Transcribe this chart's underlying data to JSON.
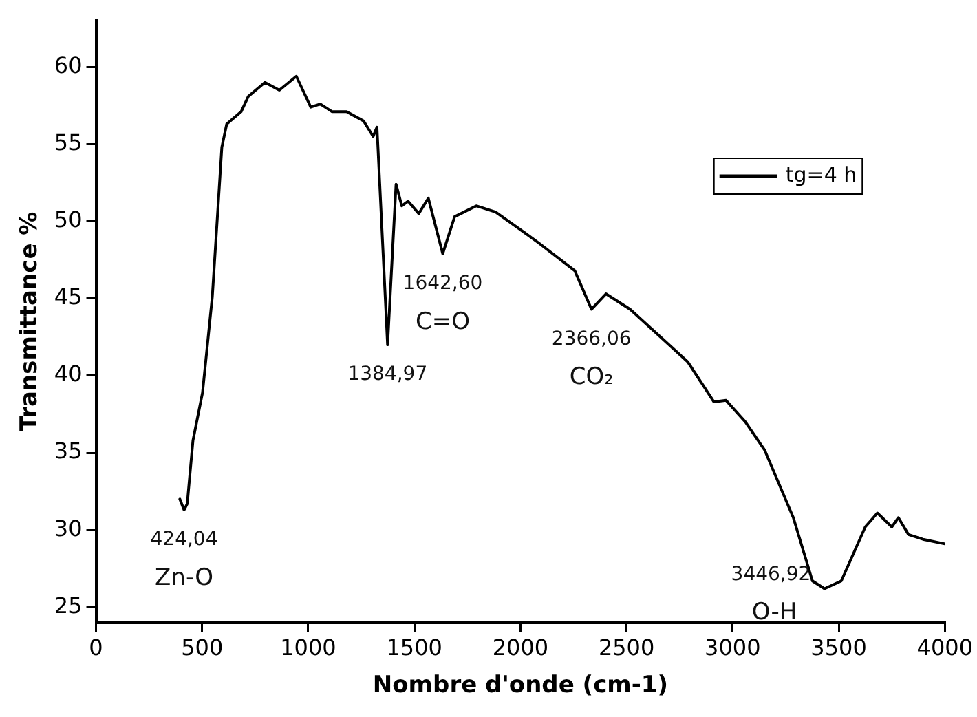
{
  "chart_data": {
    "type": "line",
    "xlabel": "Nombre d'onde (cm-1)",
    "ylabel": "Transmittance %",
    "xlim": [
      0,
      4000
    ],
    "xticks": [
      0,
      500,
      1000,
      1500,
      2000,
      2500,
      3000,
      3500,
      4000
    ],
    "ylim": [
      24,
      63
    ],
    "yticks": [
      25,
      30,
      35,
      40,
      45,
      50,
      55,
      60
    ],
    "grid": false,
    "legend": "top right",
    "marker": "none",
    "line_style": "solid",
    "series": [
      {
        "name": "tg=4 h",
        "color": "#000000",
        "x": [
          395,
          415,
          430,
          457,
          502,
          548,
          593,
          616,
          684,
          718,
          796,
          864,
          944,
          1012,
          1057,
          1113,
          1181,
          1261,
          1306,
          1324,
          1374,
          1414,
          1441,
          1471,
          1521,
          1566,
          1634,
          1690,
          1792,
          1883,
          1996,
          2086,
          2256,
          2335,
          2403,
          2517,
          2788,
          2912,
          2969,
          3060,
          3150,
          3286,
          3376,
          3433,
          3512,
          3625,
          3682,
          3750,
          3781,
          3829,
          3897,
          4000
        ],
        "values": [
          32.0,
          31.3,
          31.7,
          35.8,
          38.9,
          45.1,
          54.8,
          56.3,
          57.1,
          58.1,
          59.0,
          58.5,
          59.4,
          57.4,
          57.6,
          57.1,
          57.1,
          56.5,
          55.5,
          56.1,
          42.0,
          52.4,
          51.0,
          51.3,
          50.5,
          51.5,
          47.9,
          50.3,
          51.0,
          50.6,
          49.5,
          48.6,
          46.8,
          44.3,
          45.3,
          44.3,
          40.9,
          38.3,
          38.4,
          37.0,
          35.2,
          30.8,
          26.7,
          26.2,
          26.7,
          30.2,
          31.1,
          30.2,
          30.8,
          29.7,
          29.4,
          29.1
        ]
      }
    ],
    "annotations": [
      {
        "text": "424,04",
        "x": 415,
        "y": 31.3
      },
      {
        "text": "Zn-O",
        "x": 415,
        "y": 31.3
      },
      {
        "text": "1384,97",
        "x": 1374,
        "y": 42.0
      },
      {
        "text": "1642,60",
        "x": 1634,
        "y": 47.9
      },
      {
        "text": "C=O",
        "x": 1634,
        "y": 47.9
      },
      {
        "text": "2366,06",
        "x": 2335,
        "y": 44.3
      },
      {
        "text": "CO₂",
        "x": 2335,
        "y": 44.3
      },
      {
        "text": "3446,92",
        "x": 3433,
        "y": 26.2
      },
      {
        "text": "O-H",
        "x": 3433,
        "y": 26.2
      }
    ]
  }
}
